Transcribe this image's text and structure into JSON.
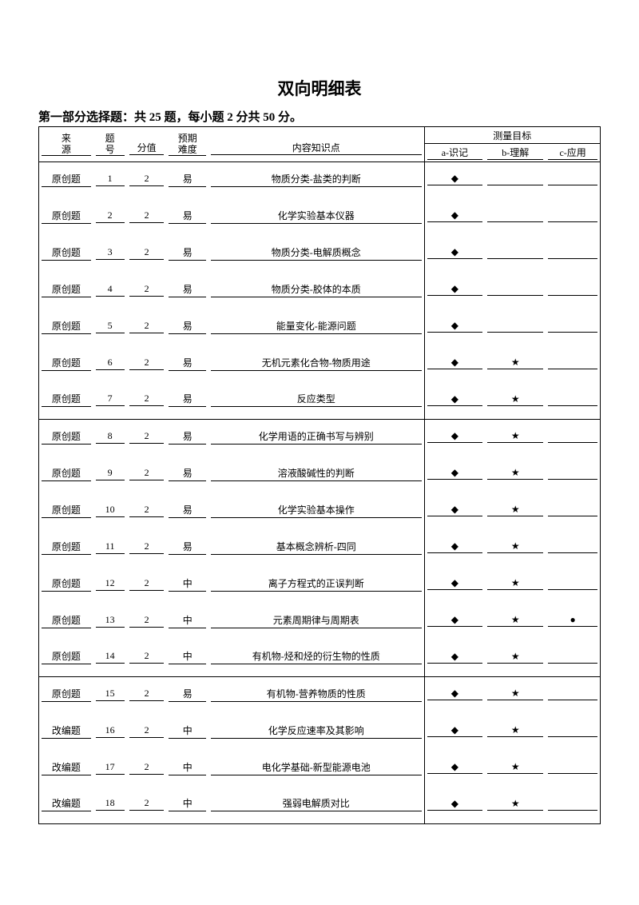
{
  "title": "双向明细表",
  "subtitle": "第一部分选择题：共 25 题，每小题 2 分共 50 分。",
  "header": {
    "source_l1": "来",
    "source_l2": "源",
    "num_l1": "题",
    "num_l2": "号",
    "score": "分值",
    "diff_l1": "预期",
    "diff_l2": "难度",
    "topic": "内容知识点",
    "measure": "测量目标",
    "a": "a-识记",
    "b": "b-理解",
    "c": "c-应用"
  },
  "symbols": {
    "diamond": "◆",
    "star": "★",
    "circle": "●"
  },
  "groups": [
    {
      "rows": [
        {
          "src": "原创题",
          "num": "1",
          "score": "2",
          "diff": "易",
          "topic": "物质分类-盐类的判断",
          "a": true,
          "b": false,
          "c": ""
        },
        {
          "src": "原创题",
          "num": "2",
          "score": "2",
          "diff": "易",
          "topic": "化学实验基本仪器",
          "a": true,
          "b": false,
          "c": ""
        },
        {
          "src": "原创题",
          "num": "3",
          "score": "2",
          "diff": "易",
          "topic": "物质分类-电解质概念",
          "a": true,
          "b": false,
          "c": ""
        },
        {
          "src": "原创题",
          "num": "4",
          "score": "2",
          "diff": "易",
          "topic": "物质分类-胶体的本质",
          "a": true,
          "b": false,
          "c": ""
        },
        {
          "src": "原创题",
          "num": "5",
          "score": "2",
          "diff": "易",
          "topic": "能量变化-能源问题",
          "a": true,
          "b": false,
          "c": ""
        },
        {
          "src": "原创题",
          "num": "6",
          "score": "2",
          "diff": "易",
          "topic": "无机元素化合物-物质用途",
          "a": true,
          "b": true,
          "c": ""
        },
        {
          "src": "原创题",
          "num": "7",
          "score": "2",
          "diff": "易",
          "topic": "反应类型",
          "a": true,
          "b": true,
          "c": ""
        }
      ]
    },
    {
      "rows": [
        {
          "src": "原创题",
          "num": "8",
          "score": "2",
          "diff": "易",
          "topic": "化学用语的正确书写与辨别",
          "a": true,
          "b": true,
          "c": ""
        },
        {
          "src": "原创题",
          "num": "9",
          "score": "2",
          "diff": "易",
          "topic": "溶液酸碱性的判断",
          "a": true,
          "b": true,
          "c": ""
        },
        {
          "src": "原创题",
          "num": "10",
          "score": "2",
          "diff": "易",
          "topic": "化学实验基本操作",
          "a": true,
          "b": true,
          "c": ""
        },
        {
          "src": "原创题",
          "num": "11",
          "score": "2",
          "diff": "易",
          "topic": "基本概念辨析-四同",
          "a": true,
          "b": true,
          "c": ""
        },
        {
          "src": "原创题",
          "num": "12",
          "score": "2",
          "diff": "中",
          "topic": "离子方程式的正误判断",
          "a": true,
          "b": true,
          "c": ""
        },
        {
          "src": "原创题",
          "num": "13",
          "score": "2",
          "diff": "中",
          "topic": "元素周期律与周期表",
          "a": true,
          "b": true,
          "c": "circle"
        },
        {
          "src": "原创题",
          "num": "14",
          "score": "2",
          "diff": "中",
          "topic": "有机物-烃和烃的衍生物的性质",
          "a": true,
          "b": true,
          "c": ""
        }
      ]
    },
    {
      "rows": [
        {
          "src": "原创题",
          "num": "15",
          "score": "2",
          "diff": "易",
          "topic": "有机物-营养物质的性质",
          "a": true,
          "b": true,
          "c": ""
        },
        {
          "src": "改编题",
          "num": "16",
          "score": "2",
          "diff": "中",
          "topic": "化学反应速率及其影响",
          "a": true,
          "b": true,
          "c": ""
        },
        {
          "src": "改编题",
          "num": "17",
          "score": "2",
          "diff": "中",
          "topic": "电化学基础-新型能源电池",
          "a": true,
          "b": true,
          "c": ""
        },
        {
          "src": "改编题",
          "num": "18",
          "score": "2",
          "diff": "中",
          "topic": "强弱电解质对比",
          "a": true,
          "b": true,
          "c": ""
        }
      ]
    }
  ]
}
